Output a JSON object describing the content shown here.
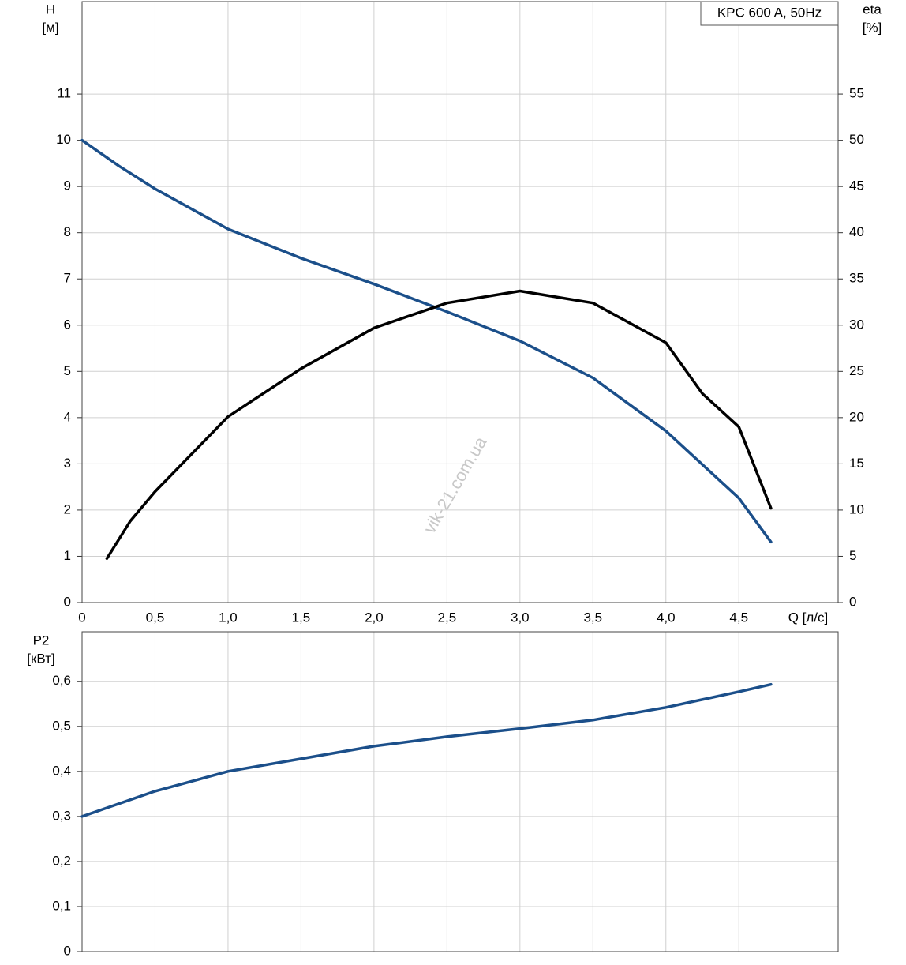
{
  "chart_data": [
    {
      "type": "line",
      "title": "KPC 600 A, 50Hz",
      "xlabel": "Q [л/с]",
      "ylabel": "H",
      "yunit": "[м]",
      "y2label": "eta",
      "y2unit": "[%]",
      "annotation": "vik-21.com.ua",
      "xlim": [
        0,
        5.18
      ],
      "xticks": [
        0,
        {
          "value": 0.5,
          "label": "0,5"
        },
        {
          "value": 1,
          "label": "1,0"
        },
        {
          "value": 1.5,
          "label": "1,5"
        },
        {
          "value": 2,
          "label": "2,0"
        },
        {
          "value": 2.5,
          "label": "2,5"
        },
        {
          "value": 3,
          "label": "3,0"
        },
        {
          "value": 3.5,
          "label": "3,5"
        },
        {
          "value": 4,
          "label": "4,0"
        },
        {
          "value": 4.5,
          "label": "4,5"
        }
      ],
      "ylim": [
        0,
        13
      ],
      "yticks": [
        0,
        1,
        2,
        3,
        4,
        5,
        6,
        7,
        8,
        9,
        10,
        11
      ],
      "y2lim": [
        0,
        65
      ],
      "y2ticks": [
        0,
        5,
        10,
        15,
        20,
        25,
        30,
        35,
        40,
        45,
        50,
        55
      ],
      "grid": true,
      "series": [
        {
          "color": "#1b4f8a",
          "x": [
            0,
            0.25,
            0.5,
            1,
            1.5,
            2,
            2.5,
            3,
            3.5,
            4,
            4.5,
            4.72
          ],
          "values": [
            10,
            9.45,
            8.95,
            8.08,
            7.45,
            6.89,
            6.29,
            5.66,
            4.86,
            3.71,
            2.26,
            1.31
          ]
        },
        {
          "color": "#000000",
          "axis": "y2",
          "x": [
            0.17,
            0.33,
            0.5,
            1,
            1.5,
            2,
            2.5,
            3,
            3.5,
            4,
            4.25,
            4.5,
            4.72
          ],
          "values": [
            4.76,
            8.8,
            12.0,
            20.1,
            25.3,
            29.7,
            32.4,
            33.7,
            32.4,
            28.1,
            22.6,
            19.0,
            10.2
          ]
        }
      ]
    },
    {
      "type": "line",
      "ylabel": "P2",
      "yunit": "[кВт]",
      "xlim": [
        0,
        5.18
      ],
      "ylim": [
        0,
        0.71
      ],
      "yticks": [
        0,
        {
          "value": 0.1,
          "label": "0,1"
        },
        {
          "value": 0.2,
          "label": "0,2"
        },
        {
          "value": 0.3,
          "label": "0,3"
        },
        {
          "value": 0.4,
          "label": "0,4"
        },
        {
          "value": 0.5,
          "label": "0,5"
        },
        {
          "value": 0.6,
          "label": "0,6"
        }
      ],
      "grid": true,
      "series": [
        {
          "color": "#1b4f8a",
          "x": [
            0,
            0.5,
            1,
            1.5,
            2,
            2.5,
            3,
            3.5,
            4,
            4.5,
            4.72
          ],
          "values": [
            0.3,
            0.356,
            0.4,
            0.428,
            0.456,
            0.477,
            0.495,
            0.514,
            0.542,
            0.577,
            0.593
          ]
        }
      ]
    }
  ]
}
